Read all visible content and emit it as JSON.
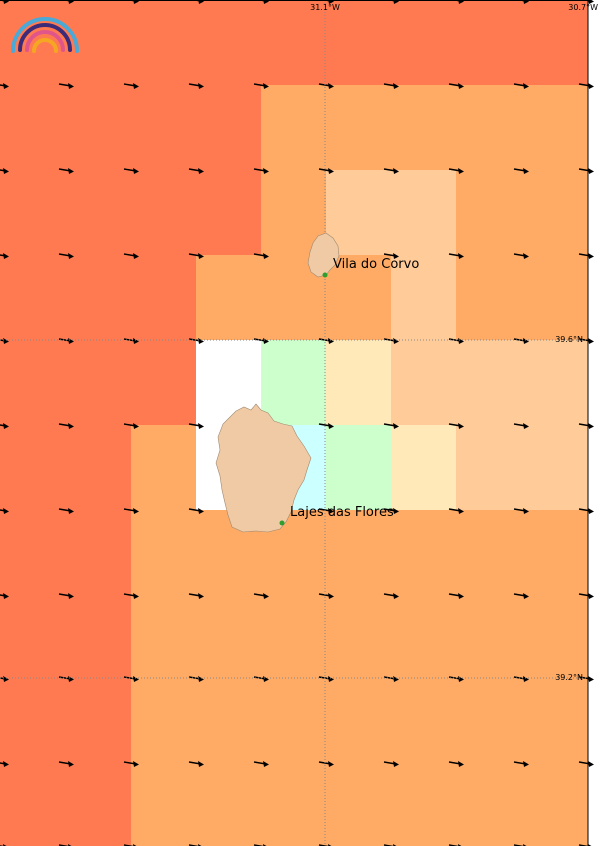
{
  "map": {
    "labels": {
      "lon_31_1": "31.1°W",
      "lon_30_7": "30.7°W",
      "lat_39_6": "39.6°N",
      "lat_39_2": "39.2°N"
    },
    "places": [
      {
        "name": "Vila do Corvo"
      },
      {
        "name": "Lajes das Flores"
      }
    ],
    "logo": "rainbow-logo",
    "palette": {
      "red": "#ff7a50",
      "orange": "#ffab65",
      "peach": "#ffcc99",
      "cream": "#ffe9b8",
      "lightgreen": "#ccffcc",
      "cyan": "#ccffff",
      "white": "#ffffff",
      "island": "#efcaa5",
      "graticule": "#888888",
      "place_dot": "#2e9e2e"
    }
  }
}
